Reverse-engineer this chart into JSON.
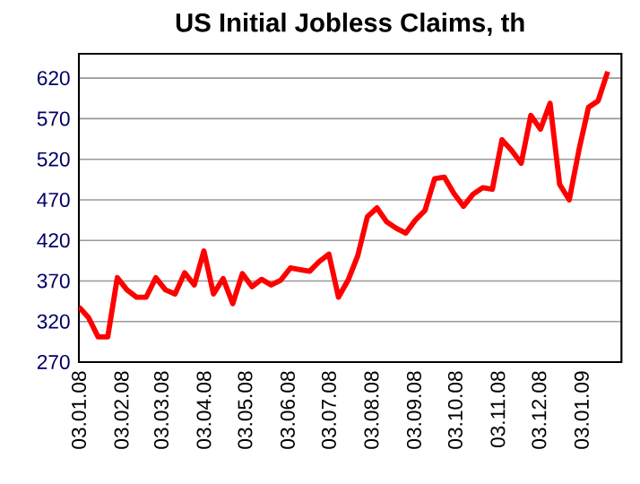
{
  "chart_data": {
    "type": "line",
    "title": "US Initial Jobless Claims, th",
    "x": [
      "2008-01-03",
      "2008-01-10",
      "2008-01-17",
      "2008-01-24",
      "2008-01-31",
      "2008-02-07",
      "2008-02-14",
      "2008-02-21",
      "2008-02-28",
      "2008-03-06",
      "2008-03-13",
      "2008-03-20",
      "2008-03-27",
      "2008-04-03",
      "2008-04-10",
      "2008-04-17",
      "2008-04-24",
      "2008-05-01",
      "2008-05-08",
      "2008-05-15",
      "2008-05-22",
      "2008-05-29",
      "2008-06-05",
      "2008-06-12",
      "2008-06-19",
      "2008-06-26",
      "2008-07-03",
      "2008-07-10",
      "2008-07-17",
      "2008-07-24",
      "2008-07-31",
      "2008-08-07",
      "2008-08-14",
      "2008-08-21",
      "2008-08-28",
      "2008-09-04",
      "2008-09-11",
      "2008-09-18",
      "2008-09-25",
      "2008-10-02",
      "2008-10-09",
      "2008-10-16",
      "2008-10-23",
      "2008-10-30",
      "2008-11-06",
      "2008-11-13",
      "2008-11-20",
      "2008-11-27",
      "2008-12-04",
      "2008-12-11",
      "2008-12-18",
      "2008-12-25",
      "2009-01-01",
      "2009-01-08",
      "2009-01-15",
      "2009-01-22"
    ],
    "series": [
      {
        "color": "#ff0000",
        "values": [
          338,
          325,
          301,
          301,
          374,
          359,
          350,
          350,
          374,
          359,
          354,
          380,
          365,
          407,
          354,
          373,
          342,
          379,
          363,
          372,
          365,
          371,
          386,
          384,
          382,
          394,
          403,
          350,
          371,
          401,
          449,
          460,
          443,
          435,
          429,
          445,
          457,
          496,
          498,
          478,
          462,
          477,
          485,
          483,
          544,
          531,
          515,
          574,
          557,
          589,
          489,
          470,
          531,
          584,
          592,
          628
        ]
      }
    ],
    "xlim": [
      "2008-01-03",
      "2009-02-01"
    ],
    "xticks": [
      {
        "value": "2008-01-03",
        "label": "03.01.08"
      },
      {
        "value": "2008-02-03",
        "label": "03.02.08"
      },
      {
        "value": "2008-03-03",
        "label": "03.03.08"
      },
      {
        "value": "2008-04-03",
        "label": "03.04.08"
      },
      {
        "value": "2008-05-03",
        "label": "03.05.08"
      },
      {
        "value": "2008-06-03",
        "label": "03.06.08"
      },
      {
        "value": "2008-07-03",
        "label": "03.07.08"
      },
      {
        "value": "2008-08-03",
        "label": "03.08.08"
      },
      {
        "value": "2008-09-03",
        "label": "03.09.08"
      },
      {
        "value": "2008-10-03",
        "label": "03.10.08"
      },
      {
        "value": "2008-11-03",
        "label": "03.11.08"
      },
      {
        "value": "2008-12-03",
        "label": "03.12.08"
      },
      {
        "value": "2009-01-03",
        "label": "03.01.09"
      }
    ],
    "ylim": [
      270,
      650
    ],
    "yticks": [
      270,
      320,
      370,
      420,
      470,
      520,
      570,
      620
    ],
    "grid": "y",
    "marker": "none",
    "line_style": "solid"
  }
}
